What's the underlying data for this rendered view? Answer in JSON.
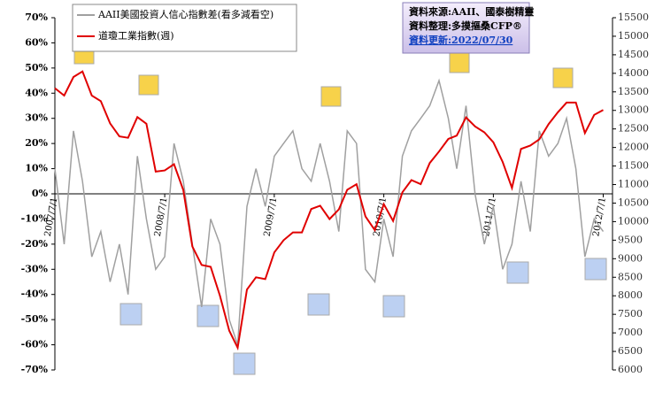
{
  "chart_data": {
    "type": "line",
    "x": [
      "2007/7/1",
      "2007/8/1",
      "2007/9/1",
      "2007/10/1",
      "2007/11/1",
      "2007/12/1",
      "2008/1/1",
      "2008/2/1",
      "2008/3/1",
      "2008/4/1",
      "2008/5/1",
      "2008/6/1",
      "2008/7/1",
      "2008/8/1",
      "2008/9/1",
      "2008/10/1",
      "2008/11/1",
      "2008/12/1",
      "2009/1/1",
      "2009/2/1",
      "2009/3/1",
      "2009/4/1",
      "2009/5/1",
      "2009/6/1",
      "2009/7/1",
      "2009/8/1",
      "2009/9/1",
      "2009/10/1",
      "2009/11/1",
      "2009/12/1",
      "2010/1/1",
      "2010/2/1",
      "2010/3/1",
      "2010/4/1",
      "2010/5/1",
      "2010/6/1",
      "2010/7/1",
      "2010/8/1",
      "2010/9/1",
      "2010/10/1",
      "2010/11/1",
      "2010/12/1",
      "2011/1/1",
      "2011/2/1",
      "2011/3/1",
      "2011/4/1",
      "2011/5/1",
      "2011/6/1",
      "2011/7/1",
      "2011/8/1",
      "2011/9/1",
      "2011/10/1",
      "2011/11/1",
      "2011/12/1",
      "2012/1/1",
      "2012/2/1",
      "2012/3/1",
      "2012/4/1",
      "2012/5/1",
      "2012/6/1",
      "2012/7/1"
    ],
    "series": [
      {
        "name": "AAII美國投資人信心指數差(看多減看空)",
        "color": "#a0a0a0",
        "values": [
          10,
          -20,
          25,
          5,
          -25,
          -15,
          -35,
          -20,
          -40,
          15,
          -10,
          -30,
          -25,
          20,
          5,
          -20,
          -45,
          -10,
          -20,
          -50,
          -60,
          -5,
          10,
          -5,
          15,
          20,
          25,
          10,
          5,
          20,
          5,
          -15,
          25,
          20,
          -30,
          -35,
          -10,
          -25,
          15,
          25,
          30,
          35,
          45,
          30,
          10,
          35,
          0,
          -20,
          -5,
          -30,
          -20,
          5,
          -15,
          25,
          15,
          20,
          30,
          10,
          -25,
          -10,
          -15
        ]
      },
      {
        "name": "道瓊工業指數(週)",
        "color": "#e00000",
        "axis": "y2",
        "values": [
          13600,
          13400,
          13900,
          14050,
          13400,
          13250,
          12650,
          12300,
          12260,
          12820,
          12640,
          11350,
          11380,
          11550,
          10850,
          9330,
          8830,
          8780,
          8000,
          7060,
          6600,
          8170,
          8500,
          8450,
          9170,
          9500,
          9710,
          9710,
          10340,
          10430,
          10070,
          10330,
          10860,
          11010,
          10140,
          9770,
          10470,
          10020,
          10790,
          11120,
          11010,
          11580,
          11890,
          12230,
          12320,
          12810,
          12570,
          12410,
          12140,
          11610,
          10910,
          11960,
          12050,
          12220,
          12630,
          12950,
          13210,
          13210,
          12390,
          12880,
          13010
        ]
      }
    ],
    "xlim": [
      "2007/7/1",
      "2012/8/1"
    ],
    "xticks": [
      "2007/7/1",
      "2008/7/1",
      "2009/7/1",
      "2010/7/1",
      "2011/7/1",
      "2012/7/1"
    ],
    "ylim": [
      -70,
      70
    ],
    "yticks": [
      {
        "value": -70,
        "label": "-70%"
      },
      {
        "value": -60,
        "label": "-60%"
      },
      {
        "value": -50,
        "label": "-50%"
      },
      {
        "value": -40,
        "label": "-40%"
      },
      {
        "value": -30,
        "label": "-30%"
      },
      {
        "value": -20,
        "label": "-20%"
      },
      {
        "value": -10,
        "label": "-10%"
      },
      {
        "value": 0,
        "label": "0%"
      },
      {
        "value": 10,
        "label": "10%"
      },
      {
        "value": 20,
        "label": "20%"
      },
      {
        "value": 30,
        "label": "30%"
      },
      {
        "value": 40,
        "label": "40%"
      },
      {
        "value": 50,
        "label": "50%"
      },
      {
        "value": 60,
        "label": "60%"
      },
      {
        "value": 70,
        "label": "70%"
      }
    ],
    "y2lim": [
      6000,
      15500
    ],
    "y2ticks": [
      6000,
      6500,
      7000,
      7500,
      8000,
      8500,
      9000,
      9500,
      10000,
      10500,
      11000,
      11500,
      12000,
      12500,
      13000,
      13500,
      14000,
      14500,
      15000,
      15500
    ],
    "source": [
      "資料來源:AAII、國泰樹精靈",
      "資料整理:多摸摳桑CFP®",
      "資料更新:2022/07/30"
    ]
  }
}
